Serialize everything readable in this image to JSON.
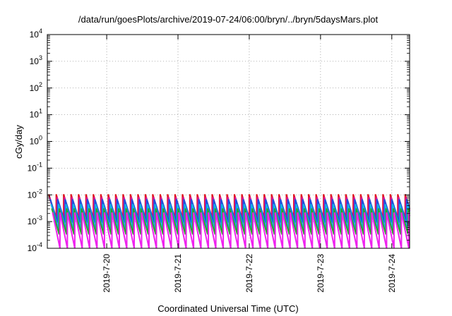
{
  "chart_data": {
    "type": "line",
    "title": "/data/run/goesPlots/archive/2019-07-24/06:00/bryn/../bryn/5daysMars.plot",
    "xlabel": "Coordinated Universal Time (UTC)",
    "ylabel": "cGy/day",
    "yscale": "log",
    "ylim": [
      0.0001,
      10000
    ],
    "xlim": [
      "2019-07-19T04:00",
      "2019-07-24T06:00"
    ],
    "grid": true,
    "y_ticks": [
      {
        "base": "10",
        "exp": "4"
      },
      {
        "base": "10",
        "exp": "3"
      },
      {
        "base": "10",
        "exp": "2"
      },
      {
        "base": "10",
        "exp": "1"
      },
      {
        "base": "10",
        "exp": "0"
      },
      {
        "base": "10",
        "exp": "-1"
      },
      {
        "base": "10",
        "exp": "-2"
      },
      {
        "base": "10",
        "exp": "-3"
      },
      {
        "base": "10",
        "exp": "-4"
      }
    ],
    "x_ticks": [
      {
        "label": "2019-7-20",
        "value": "2019-07-20T00:00"
      },
      {
        "label": "2019-7-21",
        "value": "2019-07-21T00:00"
      },
      {
        "label": "2019-7-22",
        "value": "2019-07-22T00:00"
      },
      {
        "label": "2019-7-23",
        "value": "2019-07-23T00:00"
      },
      {
        "label": "2019-7-24",
        "value": "2019-07-24T00:00"
      }
    ],
    "sawtooth_period_hours": 2.5,
    "series": [
      {
        "color": "#e0141e",
        "peak": 0.0105,
        "trough": 0.0012,
        "start": "2019-07-19T04:30"
      },
      {
        "color": "#d414a0",
        "peak": 0.0082,
        "trough": 0.00078,
        "start": "2019-07-19T04:45"
      },
      {
        "color": "#1e50dc",
        "peak": 0.0068,
        "trough": 0.00092,
        "start": "2019-07-19T05:00"
      },
      {
        "color": "#14b4e6",
        "peak": 0.0045,
        "trough": 0.00052,
        "start": "2019-07-19T05:15"
      },
      {
        "color": "#2ca02c",
        "peak": 0.0031,
        "trough": 0.00033,
        "start": "2019-07-19T05:30"
      },
      {
        "color": "#ee22ee",
        "peak": 0.0022,
        "trough": 9.5e-05,
        "start": "2019-07-19T05:45"
      }
    ]
  }
}
